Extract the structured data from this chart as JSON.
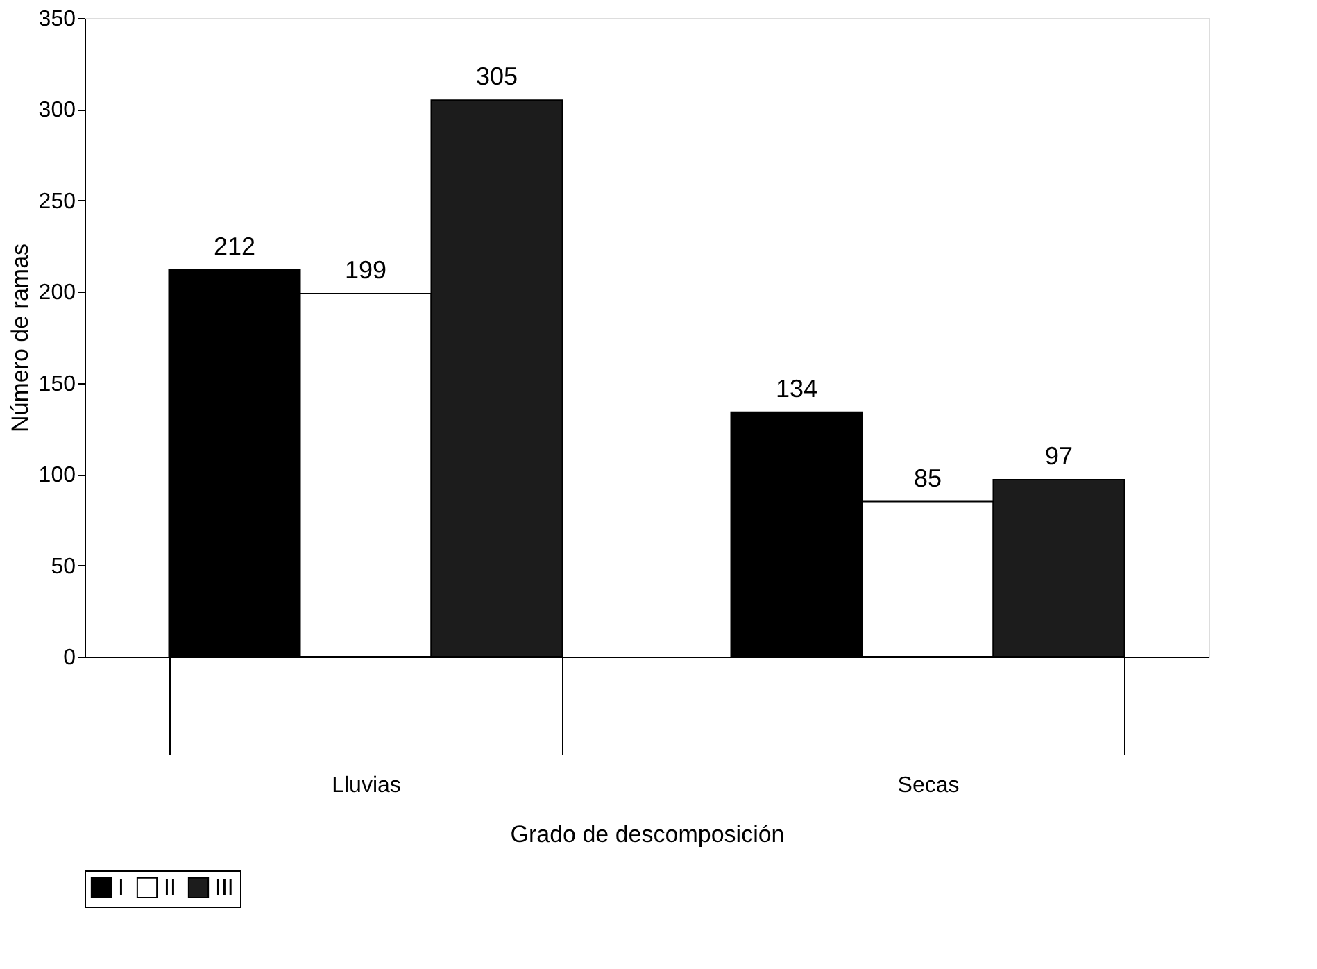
{
  "chart_data": {
    "type": "bar",
    "xlabel": "Grado de descomposición",
    "ylabel": "Número de ramas",
    "categories": [
      "Lluvias",
      "Secas"
    ],
    "series": [
      {
        "name": "I",
        "color": "#000000",
        "values": [
          212,
          134
        ]
      },
      {
        "name": "II",
        "color": "#ffffff",
        "values": [
          199,
          85
        ]
      },
      {
        "name": "III",
        "color": "#1c1c1c",
        "values": [
          305,
          97
        ]
      }
    ],
    "ylim": [
      0,
      350
    ],
    "yticks": [
      0,
      50,
      100,
      150,
      200,
      250,
      300,
      350
    ],
    "grid": false,
    "legend": "bottom",
    "data_labels": true
  }
}
